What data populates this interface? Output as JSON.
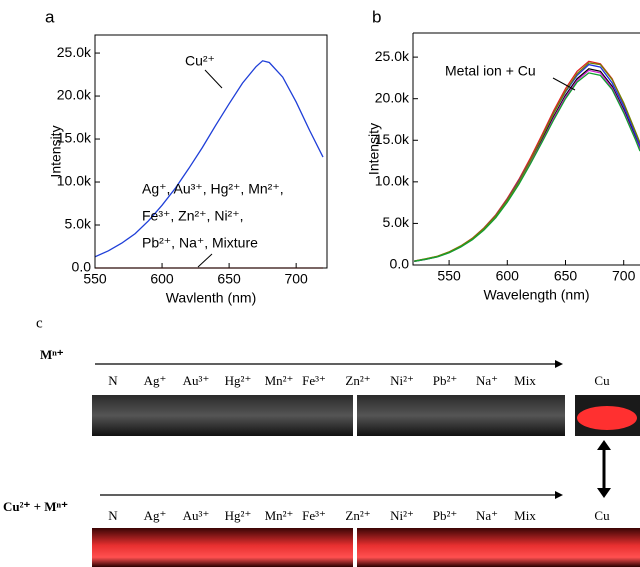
{
  "chart_data": [
    {
      "type": "line",
      "panel": "a",
      "xlabel": "Wavlenth (nm)",
      "ylabel": "Intensity",
      "xlim": [
        550,
        723
      ],
      "ylim": [
        0,
        27100
      ],
      "xticks": [
        550,
        600,
        650,
        700
      ],
      "yticks": [
        {
          "value": 0,
          "label": "0.0"
        },
        {
          "value": 5000,
          "label": "5.0k"
        },
        {
          "value": 10000,
          "label": "10.0k"
        },
        {
          "value": 15000,
          "label": "15.0k"
        },
        {
          "value": 20000,
          "label": "20.0k"
        },
        {
          "value": 25000,
          "label": "25.0k"
        }
      ],
      "x": [
        550,
        560,
        570,
        580,
        590,
        600,
        610,
        620,
        630,
        640,
        650,
        660,
        670,
        675,
        680,
        690,
        700,
        710,
        720
      ],
      "series": [
        {
          "name": "Cu²⁺",
          "color": "#1f3fd8",
          "values": [
            1300,
            2000,
            2900,
            4000,
            5500,
            7300,
            9300,
            11600,
            14000,
            16600,
            19100,
            21500,
            23400,
            24100,
            23900,
            22200,
            19300,
            16000,
            12900
          ]
        },
        {
          "color": "#d03020",
          "values": [
            0,
            0,
            0,
            0,
            0,
            0,
            0,
            0,
            0,
            0,
            0,
            0,
            0,
            0,
            0,
            0,
            0,
            0,
            0
          ]
        }
      ],
      "annotations": [
        "Ag⁺, Au³⁺, Hg²⁺, Mn²⁺,",
        "Fe³⁺, Zn²⁺, Ni²⁺,",
        "Pb²⁺, Na⁺, Mixture"
      ]
    },
    {
      "type": "line",
      "panel": "b",
      "xlabel": "Wavelength (nm)",
      "ylabel": "Intensity",
      "xlim": [
        519,
        714
      ],
      "ylim": [
        0,
        27900
      ],
      "xticks": [
        550,
        600,
        650,
        700
      ],
      "yticks": [
        {
          "value": 0,
          "label": "0.0"
        },
        {
          "value": 5000,
          "label": "5.0k"
        },
        {
          "value": 10000,
          "label": "10.0k"
        },
        {
          "value": 15000,
          "label": "15.0k"
        },
        {
          "value": 20000,
          "label": "20.0k"
        },
        {
          "value": 25000,
          "label": "25.0k"
        }
      ],
      "x": [
        520,
        530,
        540,
        550,
        560,
        570,
        580,
        590,
        600,
        610,
        620,
        630,
        640,
        650,
        660,
        670,
        680,
        690,
        700,
        710,
        714
      ],
      "series": [
        {
          "color": "#000000",
          "values": [
            450,
            700,
            1000,
            1500,
            2200,
            3100,
            4300,
            5800,
            7700,
            9900,
            12400,
            15100,
            17900,
            20400,
            22400,
            23600,
            23300,
            21500,
            18700,
            15400,
            14000
          ]
        },
        {
          "color": "#e02020",
          "values": [
            470,
            730,
            1040,
            1560,
            2290,
            3220,
            4470,
            6030,
            8010,
            10300,
            12900,
            15700,
            18600,
            21200,
            23300,
            24500,
            24200,
            22400,
            19400,
            16000,
            14600
          ]
        },
        {
          "color": "#2030e0",
          "values": [
            460,
            710,
            1020,
            1530,
            2240,
            3160,
            4390,
            5920,
            7850,
            10100,
            12600,
            15400,
            18300,
            20800,
            22800,
            24100,
            23800,
            21900,
            19100,
            15700,
            14300
          ]
        },
        {
          "color": "#d020d0",
          "values": [
            450,
            690,
            990,
            1490,
            2180,
            3070,
            4260,
            5740,
            7620,
            9800,
            12300,
            14900,
            17700,
            20200,
            22200,
            23400,
            23100,
            21300,
            18500,
            15200,
            13900
          ]
        },
        {
          "color": "#708000",
          "values": [
            480,
            740,
            1060,
            1570,
            2280,
            3190,
            4400,
            5900,
            7800,
            10000,
            12600,
            15400,
            18300,
            20900,
            23000,
            24300,
            24100,
            22300,
            19500,
            16100,
            14700
          ]
        },
        {
          "color": "#10a030",
          "values": [
            440,
            690,
            980,
            1470,
            2160,
            3040,
            4210,
            5680,
            7550,
            9700,
            12200,
            14800,
            17500,
            20000,
            22000,
            23100,
            22800,
            21100,
            18300,
            15100,
            13700
          ]
        }
      ],
      "annotations": [
        "Metal ion + Cu"
      ]
    }
  ],
  "panel_c": {
    "label": "c",
    "rows": [
      {
        "prefix": "Mⁿ⁺",
        "labels": [
          "N",
          "Ag⁺",
          "Au³⁺",
          "Hg²⁺",
          "Mn²⁺",
          "Fe³⁺",
          "Zn²⁺",
          "Ni²⁺",
          "Pb²⁺",
          "Na⁺",
          "Mix",
          "Cu"
        ]
      },
      {
        "prefix": "Cu²⁺ + Mⁿ⁺",
        "labels": [
          "N",
          "Ag⁺",
          "Au³⁺",
          "Hg²⁺",
          "Mn²⁺",
          "Fe³⁺",
          "Zn²⁺",
          "Ni²⁺",
          "Pb²⁺",
          "Na⁺",
          "Mix",
          "Cu"
        ]
      }
    ]
  }
}
